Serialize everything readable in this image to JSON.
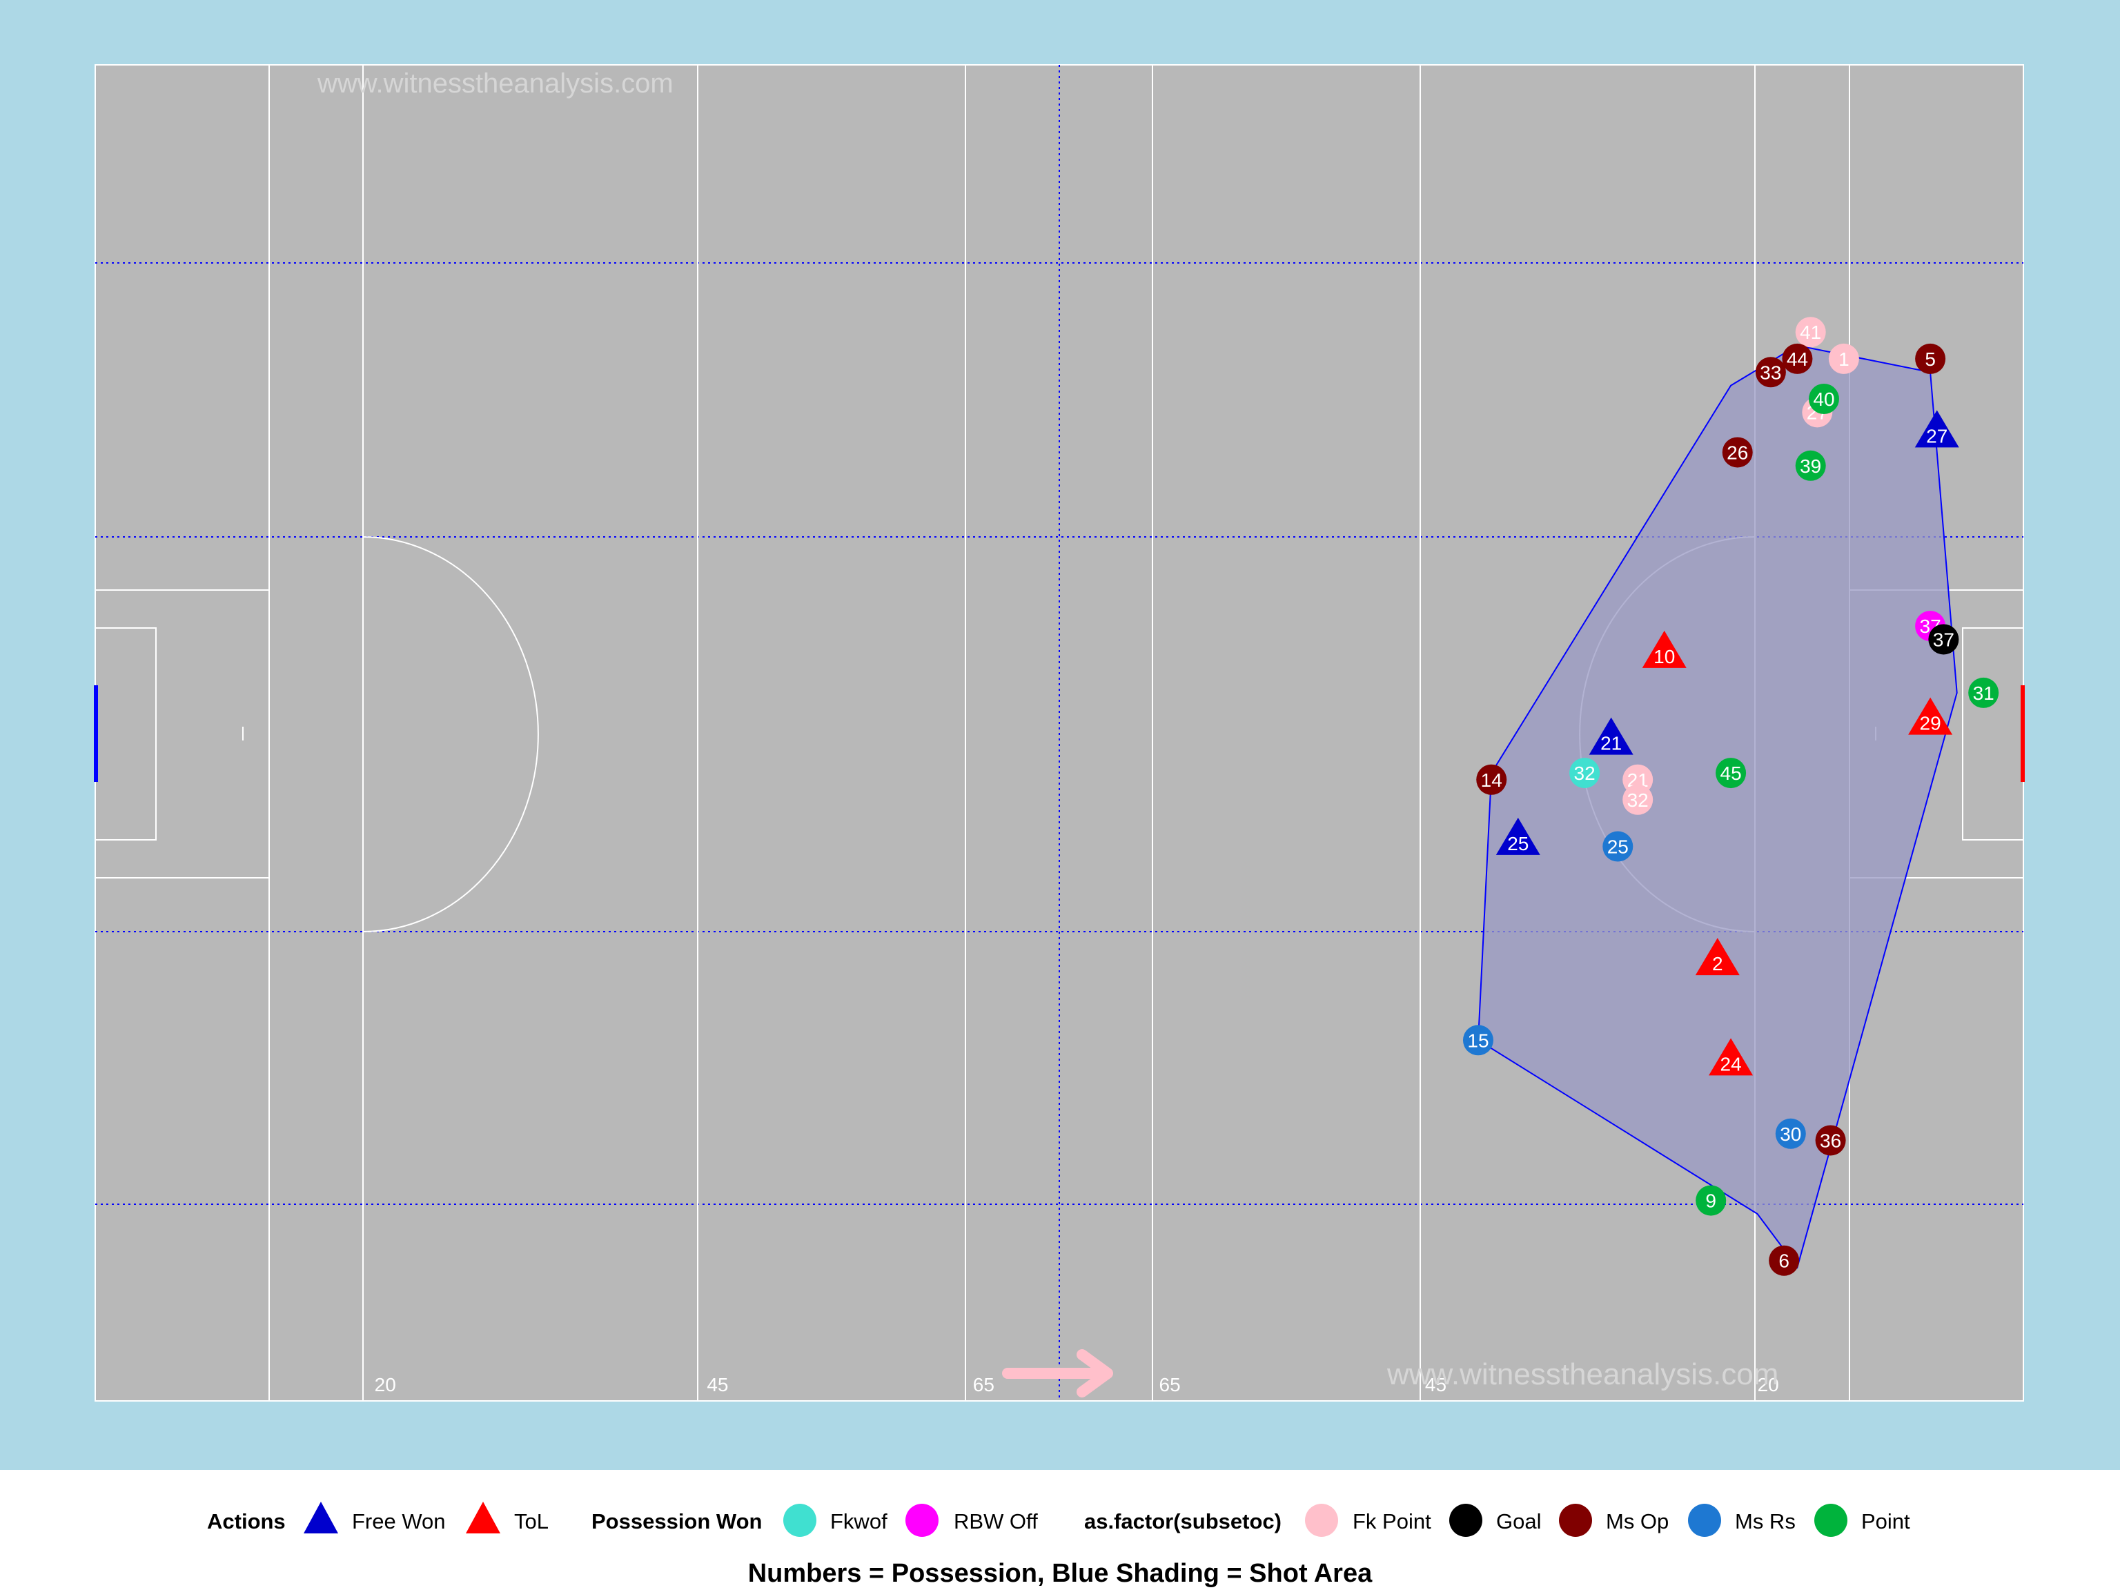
{
  "watermarks": [
    "www.witnesstheanalysis.com",
    "www.witnesstheanalysis.com"
  ],
  "colors": {
    "panel_background": "#add8e6",
    "pitch": "#b8b8b8",
    "lines": "#ffffff",
    "zone_lines": "#0000ff",
    "shot_area_fill": "#9a9ac4",
    "shot_area_stroke": "#0000ff",
    "direction_arrow": "#ffc0cb",
    "left_goal": "#0000ff",
    "right_goal": "#ff0000"
  },
  "chart_data": {
    "type": "scatter",
    "title": "",
    "caption": "Numbers = Possession, Blue Shading = Shot Area",
    "xlim": [
      0,
      145
    ],
    "ylim": [
      0,
      100
    ],
    "pitch_markings": {
      "line_labels": [
        {
          "x": 21,
          "label": "20"
        },
        {
          "x": 46,
          "label": "45"
        },
        {
          "x": 66,
          "label": "65"
        },
        {
          "x": 80,
          "label": "65"
        },
        {
          "x": 100,
          "label": "45"
        },
        {
          "x": 125,
          "label": "20"
        }
      ]
    },
    "shot_area_polygon": [
      [
        128,
        79
      ],
      [
        138,
        77
      ],
      [
        140,
        53
      ],
      [
        128,
        10
      ],
      [
        125,
        14
      ],
      [
        104,
        27
      ],
      [
        105,
        47
      ],
      [
        123,
        76
      ]
    ],
    "legend": {
      "actions": {
        "title": "Actions",
        "items": [
          {
            "label": "Free Won",
            "color": "#0000cd"
          },
          {
            "label": "ToL",
            "color": "#ff0000"
          }
        ]
      },
      "possession": {
        "title": "Possession Won",
        "items": [
          {
            "label": "Fkwof",
            "color": "#40e0d0"
          },
          {
            "label": "RBW Off",
            "color": "#ff00ff"
          }
        ]
      },
      "outcome": {
        "title": "as.factor(subsetoc)",
        "items": [
          {
            "label": "Fk Point",
            "color": "#ffc0cb"
          },
          {
            "label": "Goal",
            "color": "#000000"
          },
          {
            "label": "Ms Op",
            "color": "#800000"
          },
          {
            "label": "Ms Rs",
            "color": "#1e78d2"
          },
          {
            "label": "Point",
            "color": "#00b33c"
          }
        ]
      }
    },
    "series": [
      {
        "name": "Free Won",
        "shape": "triangle",
        "color": "#0000cd",
        "points": [
          {
            "x": 138.5,
            "y": 72.5,
            "label": "27"
          },
          {
            "x": 114,
            "y": 49.5,
            "label": "21"
          },
          {
            "x": 107,
            "y": 42,
            "label": "25"
          }
        ]
      },
      {
        "name": "ToL",
        "shape": "triangle",
        "color": "#ff0000",
        "points": [
          {
            "x": 118,
            "y": 56,
            "label": "10"
          },
          {
            "x": 138,
            "y": 51,
            "label": "29"
          },
          {
            "x": 122,
            "y": 33,
            "label": "2"
          },
          {
            "x": 123,
            "y": 25.5,
            "label": "24"
          }
        ]
      },
      {
        "name": "Fkwof",
        "shape": "circle",
        "color": "#40e0d0",
        "points": [
          {
            "x": 112,
            "y": 47,
            "label": "32"
          }
        ]
      },
      {
        "name": "RBW Off",
        "shape": "circle",
        "color": "#ff00ff",
        "points": [
          {
            "x": 138,
            "y": 58,
            "label": "37"
          }
        ]
      },
      {
        "name": "Fk Point",
        "shape": "circle",
        "color": "#ffc0cb",
        "points": [
          {
            "x": 129,
            "y": 80,
            "label": "41"
          },
          {
            "x": 131.5,
            "y": 78,
            "label": "1"
          },
          {
            "x": 129.5,
            "y": 74,
            "label": "27"
          },
          {
            "x": 116,
            "y": 46.5,
            "label": "21"
          },
          {
            "x": 116,
            "y": 45,
            "label": "32"
          }
        ]
      },
      {
        "name": "Goal",
        "shape": "circle",
        "color": "#000000",
        "points": [
          {
            "x": 139,
            "y": 57,
            "label": "37"
          }
        ]
      },
      {
        "name": "Ms Op",
        "shape": "circle",
        "color": "#800000",
        "points": [
          {
            "x": 126,
            "y": 77,
            "label": "33"
          },
          {
            "x": 128,
            "y": 78,
            "label": "44"
          },
          {
            "x": 138,
            "y": 78,
            "label": "5"
          },
          {
            "x": 123.5,
            "y": 71,
            "label": "26"
          },
          {
            "x": 105,
            "y": 46.5,
            "label": "14"
          },
          {
            "x": 130.5,
            "y": 19.5,
            "label": "36"
          },
          {
            "x": 127,
            "y": 10.5,
            "label": "6"
          }
        ]
      },
      {
        "name": "Ms Rs",
        "shape": "circle",
        "color": "#1e78d2",
        "points": [
          {
            "x": 114.5,
            "y": 41.5,
            "label": "25"
          },
          {
            "x": 104,
            "y": 27,
            "label": "15"
          },
          {
            "x": 127.5,
            "y": 20,
            "label": "30"
          }
        ]
      },
      {
        "name": "Point",
        "shape": "circle",
        "color": "#00b33c",
        "points": [
          {
            "x": 130,
            "y": 75,
            "label": "40"
          },
          {
            "x": 129,
            "y": 70,
            "label": "39"
          },
          {
            "x": 142,
            "y": 53,
            "label": "31"
          },
          {
            "x": 123,
            "y": 47,
            "label": "45"
          },
          {
            "x": 121.5,
            "y": 15,
            "label": "9"
          }
        ]
      }
    ]
  }
}
